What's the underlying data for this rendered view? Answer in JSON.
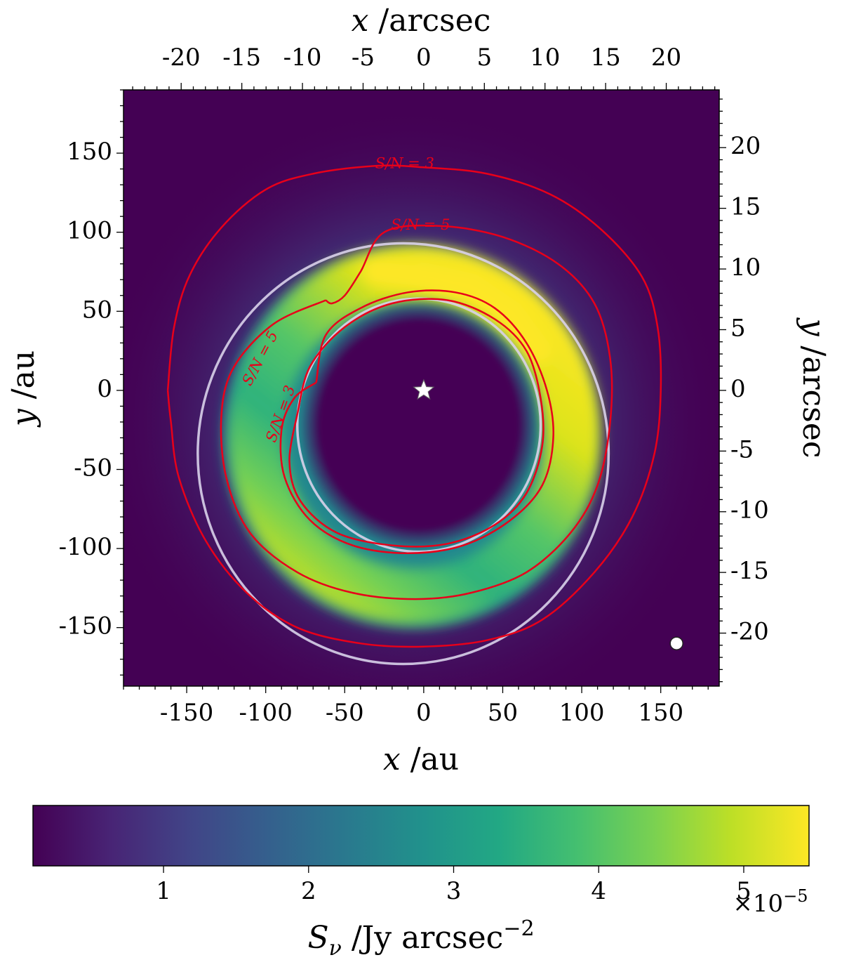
{
  "chart_data": {
    "type": "heatmap",
    "title": "",
    "image": {
      "description_of_values": "surface brightness map of an eccentric disc",
      "x_range_au": [
        -190,
        187
      ],
      "y_range_au": [
        -187,
        190
      ],
      "peak_value": 5.4e-05,
      "peak_location_au": [
        30,
        60
      ],
      "colormap": "viridis"
    },
    "x_bottom": {
      "label_symbol": "x",
      "label_unit": " /au",
      "ticks": [
        -150,
        -100,
        -50,
        0,
        50,
        100,
        150
      ],
      "tick_labels": [
        "-150",
        "-100",
        "-50",
        "0",
        "50",
        "100",
        "150"
      ]
    },
    "y_left": {
      "label_symbol": "y",
      "label_unit": " /au",
      "ticks": [
        150,
        100,
        50,
        0,
        -50,
        -100,
        -150
      ],
      "tick_labels": [
        "150",
        "100",
        "50",
        "0",
        "-50",
        "-100",
        "-150"
      ]
    },
    "x_top": {
      "label_symbol": "x",
      "label_unit": " /arcsec",
      "ticks": [
        -20,
        -15,
        -10,
        -5,
        0,
        5,
        10,
        15,
        20
      ],
      "tick_labels": [
        "-20",
        "-15",
        "-10",
        "-5",
        "0",
        "5",
        "10",
        "15",
        "20"
      ]
    },
    "y_right": {
      "label_symbol": "y",
      "label_unit": " /arcsec",
      "ticks": [
        20,
        15,
        10,
        5,
        0,
        -5,
        -10,
        -15,
        -20
      ],
      "tick_labels": [
        "20",
        "15",
        "10",
        "5",
        "0",
        "-5",
        "-10",
        "-15",
        "-20"
      ]
    },
    "arcsec_per_au": 0.1303,
    "colorbar": {
      "range": [
        1e-06,
        5.45e-05
      ],
      "ticks": [
        1,
        2,
        3,
        4,
        5
      ],
      "tick_labels": [
        "1",
        "2",
        "3",
        "4",
        "5"
      ],
      "multiplier_text": "×10",
      "multiplier_exp": "−5",
      "label_symbol": "S",
      "label_subscript": "ν",
      "label_unit": " /Jy arcsec",
      "label_exp": "−2"
    },
    "star": {
      "x": 0,
      "y": 0
    },
    "beam": {
      "x": 160,
      "y": -160,
      "radius": 4
    },
    "white_ellipses": [
      {
        "name": "inner",
        "cx": -3,
        "cy": -22,
        "rx": 77,
        "ry": 80
      },
      {
        "name": "outer",
        "cx": -13,
        "cy": -40,
        "rx": 130,
        "ry": 133
      }
    ],
    "contours": [
      {
        "label": "S/N = 3",
        "points": [
          [
            -162,
            0
          ],
          [
            -158,
            40
          ],
          [
            -148,
            73
          ],
          [
            -128,
            103
          ],
          [
            -100,
            127
          ],
          [
            -70,
            137
          ],
          [
            -30,
            142
          ],
          [
            0,
            141
          ],
          [
            40,
            137
          ],
          [
            80,
            124
          ],
          [
            112,
            102
          ],
          [
            138,
            72
          ],
          [
            148,
            40
          ],
          [
            150,
            0
          ],
          [
            146,
            -40
          ],
          [
            132,
            -80
          ],
          [
            108,
            -115
          ],
          [
            75,
            -145
          ],
          [
            40,
            -158
          ],
          [
            0,
            -162
          ],
          [
            -40,
            -160
          ],
          [
            -80,
            -150
          ],
          [
            -112,
            -128
          ],
          [
            -138,
            -95
          ],
          [
            -155,
            -55
          ],
          [
            -160,
            -20
          ],
          [
            -162,
            0
          ]
        ]
      },
      {
        "label": "S/N = 5",
        "points": [
          [
            -62,
            57
          ],
          [
            -95,
            42
          ],
          [
            -120,
            15
          ],
          [
            -128,
            -15
          ],
          [
            -125,
            -55
          ],
          [
            -110,
            -90
          ],
          [
            -80,
            -115
          ],
          [
            -45,
            -128
          ],
          [
            -5,
            -132
          ],
          [
            30,
            -128
          ],
          [
            65,
            -115
          ],
          [
            93,
            -90
          ],
          [
            110,
            -60
          ],
          [
            118,
            -20
          ],
          [
            118,
            20
          ],
          [
            108,
            55
          ],
          [
            85,
            80
          ],
          [
            50,
            97
          ],
          [
            10,
            104
          ],
          [
            -25,
            100
          ],
          [
            -40,
            75
          ],
          [
            -50,
            60
          ],
          [
            -58,
            55
          ],
          [
            -62,
            57
          ]
        ]
      },
      {
        "label": "S/N = 5",
        "points": [
          [
            -68,
            5
          ],
          [
            -62,
            35
          ],
          [
            -40,
            52
          ],
          [
            -10,
            62
          ],
          [
            20,
            62
          ],
          [
            45,
            52
          ],
          [
            65,
            30
          ],
          [
            78,
            0
          ],
          [
            82,
            -30
          ],
          [
            75,
            -60
          ],
          [
            55,
            -82
          ],
          [
            25,
            -98
          ],
          [
            -10,
            -103
          ],
          [
            -45,
            -98
          ],
          [
            -72,
            -82
          ],
          [
            -88,
            -55
          ],
          [
            -90,
            -25
          ],
          [
            -82,
            -5
          ],
          [
            -68,
            5
          ]
        ]
      },
      {
        "label": "S/N = 3",
        "points": [
          [
            -80,
            -15
          ],
          [
            -72,
            15
          ],
          [
            -50,
            40
          ],
          [
            -20,
            55
          ],
          [
            15,
            57
          ],
          [
            45,
            45
          ],
          [
            65,
            25
          ],
          [
            74,
            -5
          ],
          [
            75,
            -35
          ],
          [
            65,
            -65
          ],
          [
            45,
            -85
          ],
          [
            15,
            -97
          ],
          [
            -20,
            -98
          ],
          [
            -55,
            -90
          ],
          [
            -78,
            -70
          ],
          [
            -85,
            -45
          ],
          [
            -80,
            -15
          ]
        ]
      }
    ]
  }
}
